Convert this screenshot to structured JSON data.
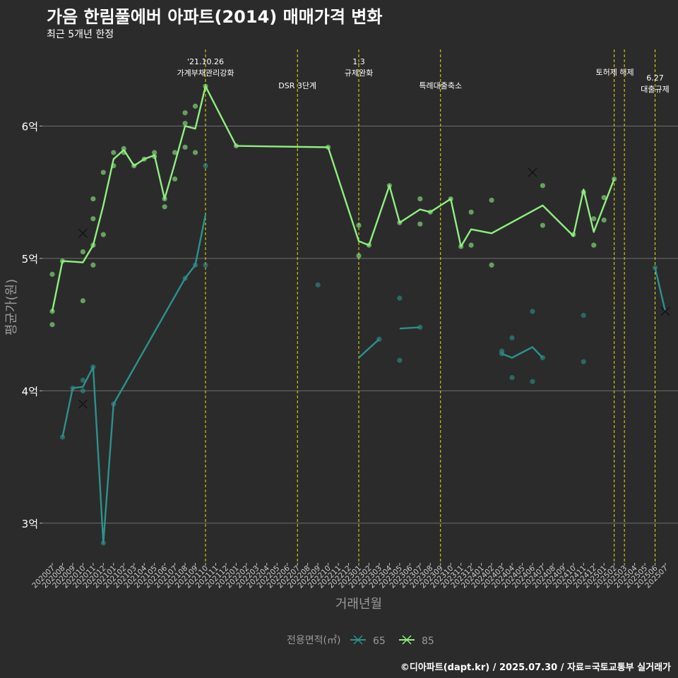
{
  "header": {
    "title": "가음 한림풀에버 아파트(2014) 매매가격 변화",
    "subtitle": "최근 5개년 한정"
  },
  "caption": "©디아파트(dapt.kr) / 2025.07.30 / 자료=국토교통부 실거래가",
  "colors": {
    "s65": "#2d918c",
    "s85": "#90ee80",
    "vline": "#e6e600",
    "grid": "#6e6e6e",
    "bg": "#2b2b2c"
  },
  "chart_data": {
    "type": "line",
    "xlabel": "거래년월",
    "ylabel": "평균가(원)",
    "ylim": [
      2.7,
      6.6
    ],
    "yticks": [
      {
        "v": 3,
        "label": "3억"
      },
      {
        "v": 4,
        "label": "4억"
      },
      {
        "v": 5,
        "label": "5억"
      },
      {
        "v": 6,
        "label": "6억"
      }
    ],
    "categories": [
      "202007",
      "202008",
      "202009",
      "202010",
      "202011",
      "202012",
      "202101",
      "202102",
      "202103",
      "202104",
      "202105",
      "202106",
      "202107",
      "202108",
      "202109",
      "202110",
      "202111",
      "202112",
      "202201",
      "202202",
      "202203",
      "202204",
      "202205",
      "202206",
      "202207",
      "202208",
      "202209",
      "202210",
      "202211",
      "202212",
      "202301",
      "202302",
      "202303",
      "202304",
      "202305",
      "202306",
      "202307",
      "202308",
      "202309",
      "202310",
      "202311",
      "202312",
      "202401",
      "202402",
      "202403",
      "202404",
      "202405",
      "202406",
      "202407",
      "202408",
      "202409",
      "202410",
      "202411",
      "202412",
      "202501",
      "202502",
      "202503",
      "202504",
      "202505",
      "202506",
      "202507"
    ],
    "legend": {
      "title": "전용면적(㎡)",
      "items": [
        "65",
        "85"
      ]
    },
    "events": [
      {
        "idx": 15,
        "lines": [
          "'21.10.26",
          "가계부채관리강화"
        ],
        "level": 0
      },
      {
        "idx": 24,
        "lines": [
          "DSR 3단계"
        ],
        "level": 2
      },
      {
        "idx": 30,
        "lines": [
          "1.3",
          "규제완화"
        ],
        "level": 0
      },
      {
        "idx": 38,
        "lines": [
          "특례대출축소"
        ],
        "level": 2
      },
      {
        "idx": 55,
        "lines": [
          "토허제 해제"
        ],
        "level": 1,
        "align": "end"
      },
      {
        "idx": 56,
        "lines": [],
        "level": 1
      },
      {
        "idx": 59,
        "lines": [
          "6.27",
          "대출규제"
        ],
        "level": 3
      }
    ],
    "series": [
      {
        "name": "65",
        "color": "#2d918c",
        "line": [
          [
            1,
            3.65
          ],
          [
            2,
            4.02
          ],
          [
            3,
            4.03
          ],
          [
            4,
            4.18
          ],
          [
            5,
            2.85
          ],
          [
            6,
            3.9
          ],
          [
            13,
            4.85
          ],
          [
            14,
            4.95
          ],
          [
            15,
            5.33
          ],
          null,
          [
            30,
            4.25
          ],
          [
            32,
            4.39
          ],
          null,
          [
            34,
            4.47
          ],
          [
            36,
            4.48
          ],
          null,
          [
            44,
            4.28
          ],
          [
            45,
            4.25
          ],
          [
            47,
            4.33
          ],
          [
            48,
            4.25
          ],
          null,
          [
            59,
            4.93
          ],
          [
            60,
            4.6
          ]
        ],
        "points": [
          [
            1,
            3.65
          ],
          [
            2,
            4.02
          ],
          [
            3,
            4.0
          ],
          [
            3,
            4.08
          ],
          [
            4,
            4.18
          ],
          [
            5,
            2.85
          ],
          [
            6,
            3.9
          ],
          [
            13,
            4.85
          ],
          [
            14,
            4.95
          ],
          [
            15,
            4.95
          ],
          [
            15,
            5.7
          ],
          [
            26,
            4.8
          ],
          [
            32,
            4.39
          ],
          [
            34,
            4.7
          ],
          [
            34,
            4.23
          ],
          [
            36,
            4.48
          ],
          [
            44,
            4.3
          ],
          [
            44,
            4.28
          ],
          [
            45,
            4.4
          ],
          [
            45,
            4.1
          ],
          [
            47,
            4.6
          ],
          [
            47,
            4.07
          ],
          [
            48,
            4.25
          ],
          [
            52,
            4.57
          ],
          [
            52,
            4.22
          ],
          [
            59,
            4.93
          ]
        ],
        "marks": [
          [
            3,
            3.9
          ],
          [
            60,
            4.6
          ]
        ]
      },
      {
        "name": "85",
        "color": "#90ee80",
        "line": [
          [
            0,
            4.6
          ],
          [
            1,
            4.98
          ],
          [
            3,
            4.97
          ],
          [
            4,
            5.1
          ],
          [
            5,
            5.4
          ],
          [
            6,
            5.75
          ],
          [
            7,
            5.82
          ],
          [
            8,
            5.7
          ],
          [
            9,
            5.75
          ],
          [
            10,
            5.78
          ],
          [
            11,
            5.45
          ],
          [
            12,
            5.72
          ],
          [
            13,
            6.0
          ],
          [
            14,
            5.98
          ],
          [
            15,
            6.3
          ],
          [
            18,
            5.85
          ],
          [
            27,
            5.84
          ],
          [
            30,
            5.13
          ],
          [
            31,
            5.1
          ],
          [
            33,
            5.55
          ],
          [
            34,
            5.27
          ],
          [
            36,
            5.37
          ],
          [
            37,
            5.35
          ],
          [
            39,
            5.45
          ],
          [
            40,
            5.09
          ],
          [
            41,
            5.22
          ],
          [
            43,
            5.19
          ],
          [
            48,
            5.4
          ],
          [
            51,
            5.17
          ],
          [
            52,
            5.52
          ],
          [
            53,
            5.2
          ],
          [
            55,
            5.6
          ]
        ],
        "points": [
          [
            0,
            4.88
          ],
          [
            0,
            4.6
          ],
          [
            0,
            4.5
          ],
          [
            1,
            4.98
          ],
          [
            3,
            5.05
          ],
          [
            3,
            4.68
          ],
          [
            4,
            5.45
          ],
          [
            4,
            5.3
          ],
          [
            4,
            5.1
          ],
          [
            4,
            4.95
          ],
          [
            5,
            5.65
          ],
          [
            5,
            5.18
          ],
          [
            6,
            5.8
          ],
          [
            6,
            5.7
          ],
          [
            7,
            5.83
          ],
          [
            7,
            5.8
          ],
          [
            8,
            5.7
          ],
          [
            9,
            5.75
          ],
          [
            10,
            5.8
          ],
          [
            10,
            5.77
          ],
          [
            11,
            5.45
          ],
          [
            11,
            5.39
          ],
          [
            12,
            5.8
          ],
          [
            12,
            5.6
          ],
          [
            13,
            6.1
          ],
          [
            13,
            6.02
          ],
          [
            13,
            5.84
          ],
          [
            14,
            6.15
          ],
          [
            14,
            5.8
          ],
          [
            15,
            6.3
          ],
          [
            18,
            5.85
          ],
          [
            27,
            5.84
          ],
          [
            30,
            5.25
          ],
          [
            30,
            5.02
          ],
          [
            31,
            5.1
          ],
          [
            33,
            5.55
          ],
          [
            34,
            5.27
          ],
          [
            36,
            5.45
          ],
          [
            36,
            5.26
          ],
          [
            37,
            5.35
          ],
          [
            39,
            5.45
          ],
          [
            40,
            5.09
          ],
          [
            41,
            5.35
          ],
          [
            41,
            5.1
          ],
          [
            43,
            5.44
          ],
          [
            43,
            4.95
          ],
          [
            48,
            5.55
          ],
          [
            48,
            5.25
          ],
          [
            51,
            5.18
          ],
          [
            52,
            5.5
          ],
          [
            53,
            5.3
          ],
          [
            53,
            5.1
          ],
          [
            54,
            5.46
          ],
          [
            54,
            5.29
          ],
          [
            55,
            5.6
          ]
        ],
        "marks": [
          [
            3,
            5.19
          ],
          [
            47,
            5.65
          ]
        ]
      }
    ]
  }
}
